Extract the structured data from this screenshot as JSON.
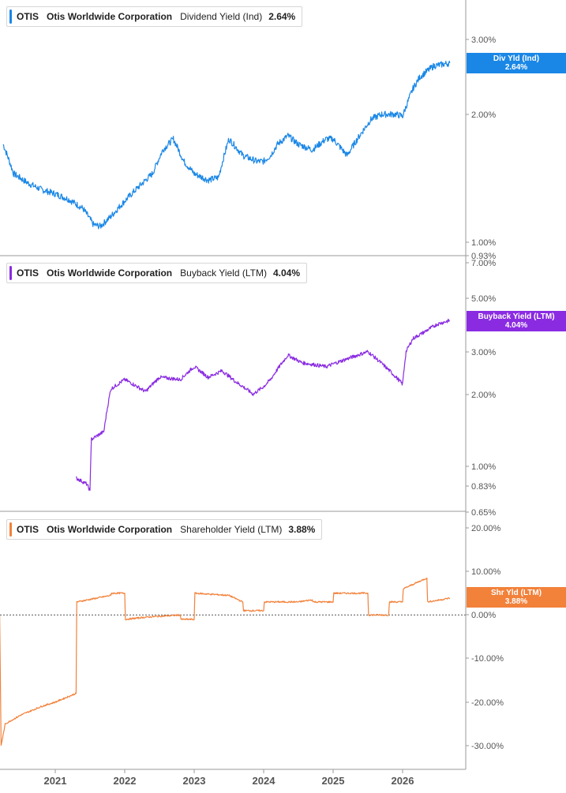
{
  "x_axis": {
    "ticks": [
      "2021",
      "2022",
      "2023",
      "2024",
      "2025",
      "2026"
    ]
  },
  "panels": [
    {
      "ticker": "OTIS",
      "company": "Otis Worldwide Corporation",
      "metric": "Dividend Yield (Ind)",
      "value": "2.64%",
      "color": "#1a87e6",
      "tag": [
        "Div Yld (Ind)",
        "2.64%"
      ],
      "y_ticks": [
        "3.00%",
        "2.00%",
        "1.00%",
        "0.93%"
      ]
    },
    {
      "ticker": "OTIS",
      "company": "Otis Worldwide Corporation",
      "metric": "Buyback Yield (LTM)",
      "value": "4.04%",
      "color": "#8a2be2",
      "tag": [
        "Buyback Yield (LTM)",
        "4.04%"
      ],
      "y_ticks": [
        "7.00%",
        "5.00%",
        "3.00%",
        "2.00%",
        "1.00%",
        "0.83%",
        "0.65%"
      ]
    },
    {
      "ticker": "OTIS",
      "company": "Otis Worldwide Corporation",
      "metric": "Shareholder Yield (LTM)",
      "value": "3.88%",
      "color": "#f2813a",
      "tag": [
        "Shr Yld (LTM)",
        "3.88%"
      ],
      "y_ticks": [
        "20.00%",
        "10.00%",
        "0.00%",
        "-10.00%",
        "-20.00%",
        "-30.00%"
      ]
    }
  ],
  "chart_data": [
    {
      "type": "line",
      "series": [
        {
          "name": "Dividend Yield (Ind)",
          "x": [
            2020.25,
            2020.4,
            2020.6,
            2020.8,
            2021.0,
            2021.2,
            2021.4,
            2021.55,
            2021.65,
            2021.8,
            2022.0,
            2022.2,
            2022.4,
            2022.55,
            2022.7,
            2022.85,
            2023.0,
            2023.2,
            2023.35,
            2023.5,
            2023.7,
            2023.9,
            2024.0,
            2024.1,
            2024.2,
            2024.35,
            2024.5,
            2024.7,
            2024.9,
            2025.0,
            2025.2,
            2025.4,
            2025.55,
            2025.7,
            2025.9,
            2026.0,
            2026.15,
            2026.25,
            2026.45,
            2026.68
          ],
          "values": [
            1.7,
            1.45,
            1.38,
            1.33,
            1.3,
            1.26,
            1.2,
            1.1,
            1.09,
            1.15,
            1.25,
            1.35,
            1.45,
            1.65,
            1.75,
            1.55,
            1.45,
            1.4,
            1.42,
            1.75,
            1.6,
            1.55,
            1.55,
            1.6,
            1.7,
            1.78,
            1.7,
            1.65,
            1.75,
            1.75,
            1.6,
            1.8,
            1.95,
            2.0,
            2.0,
            1.98,
            2.3,
            2.45,
            2.6,
            2.64
          ]
        }
      ],
      "ylim": [
        0.93,
        3.6
      ],
      "log_scale": true
    },
    {
      "type": "line",
      "series": [
        {
          "name": "Buyback Yield (LTM)",
          "x": [
            2021.3,
            2021.45,
            2021.5,
            2021.52,
            2021.7,
            2021.8,
            2022.0,
            2022.3,
            2022.5,
            2022.8,
            2023.0,
            2023.2,
            2023.4,
            2023.6,
            2023.85,
            2024.0,
            2024.1,
            2024.35,
            2024.55,
            2024.9,
            2025.2,
            2025.5,
            2025.75,
            2026.0,
            2026.05,
            2026.15,
            2026.3,
            2026.5,
            2026.68
          ],
          "values": [
            0.9,
            0.85,
            0.8,
            1.3,
            1.4,
            2.1,
            2.3,
            2.05,
            2.35,
            2.3,
            2.6,
            2.35,
            2.5,
            2.25,
            2.0,
            2.15,
            2.3,
            2.9,
            2.7,
            2.6,
            2.8,
            3.0,
            2.6,
            2.2,
            3.0,
            3.4,
            3.6,
            3.9,
            4.04
          ]
        }
      ],
      "ylim": [
        0.65,
        7.4
      ],
      "log_scale": true
    },
    {
      "type": "line",
      "series": [
        {
          "name": "Shareholder Yield (LTM)",
          "x": [
            2020.2,
            2020.22,
            2020.28,
            2020.5,
            2020.8,
            2021.0,
            2021.3,
            2021.31,
            2021.8,
            2021.81,
            2022.0,
            2022.01,
            2022.3,
            2022.8,
            2022.81,
            2023.0,
            2023.01,
            2023.5,
            2023.7,
            2023.71,
            2024.0,
            2024.01,
            2024.5,
            2024.7,
            2024.71,
            2025.0,
            2025.01,
            2025.5,
            2025.51,
            2025.8,
            2025.81,
            2026.0,
            2026.01,
            2026.35,
            2026.36,
            2026.55,
            2026.68
          ],
          "values": [
            0,
            -30,
            -25,
            -23,
            -21,
            -20,
            -18,
            3,
            4.5,
            5,
            5,
            -1,
            -0.5,
            0,
            -1,
            -1,
            5,
            4.5,
            3,
            1,
            1,
            3,
            3,
            3.5,
            3,
            3,
            5,
            5,
            0,
            0,
            3,
            3,
            6,
            8.5,
            3,
            3.5,
            3.88
          ]
        }
      ],
      "ylim": [
        -32,
        20
      ],
      "baseline": 0
    }
  ]
}
